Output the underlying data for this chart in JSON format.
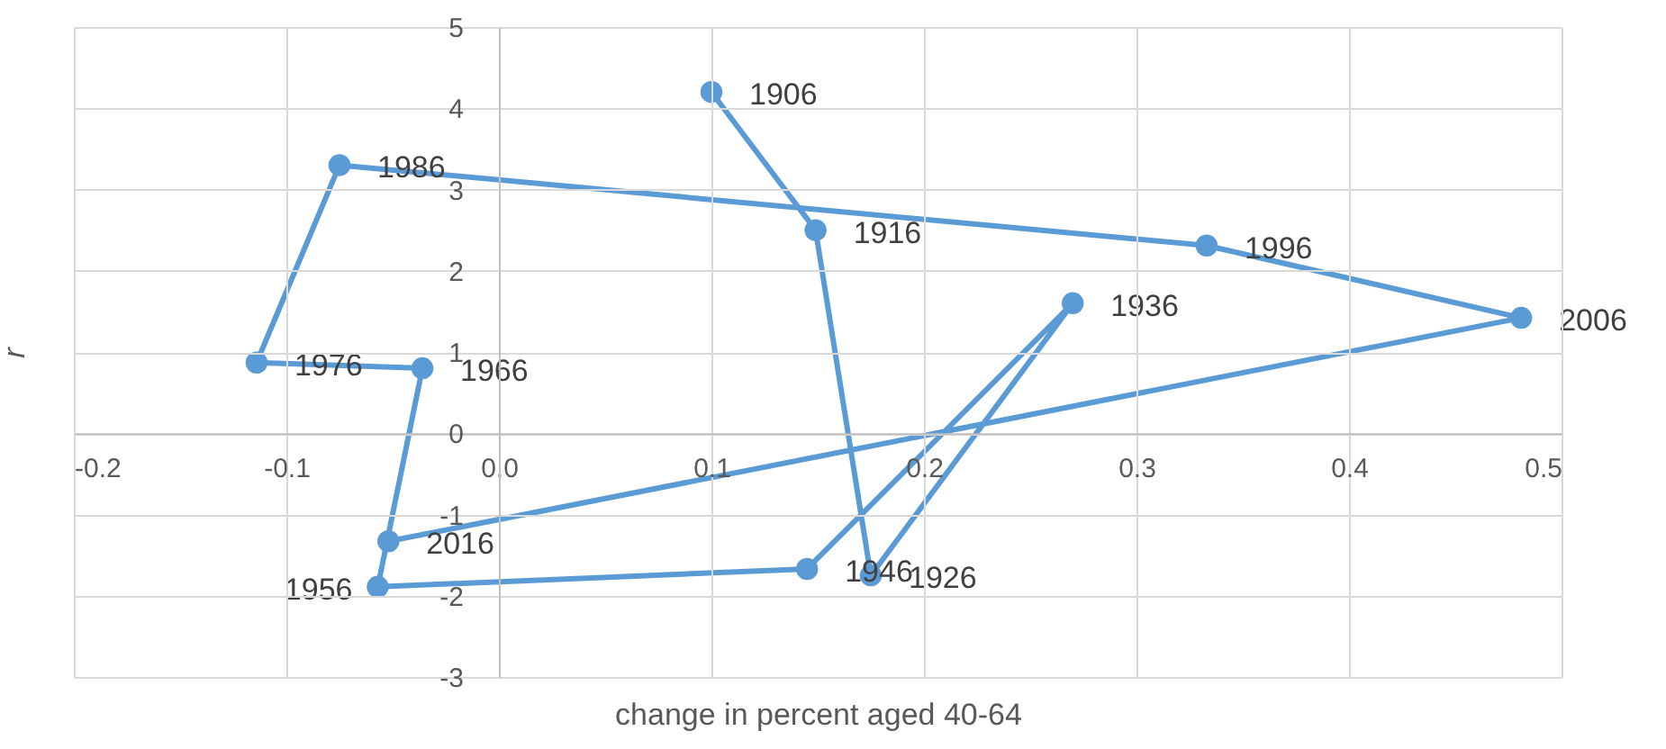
{
  "chart_data": {
    "type": "line",
    "xlabel": "change in percent aged 40-64",
    "ylabel": "r",
    "x": [
      0.1,
      0.149,
      0.175,
      0.27,
      0.145,
      -0.057,
      -0.036,
      -0.114,
      -0.075,
      0.333,
      0.481,
      -0.052
    ],
    "series": [
      {
        "color": "#5b9bd5",
        "values": [
          4.2,
          2.5,
          -1.75,
          1.6,
          -1.67,
          -1.89,
          0.8,
          0.87,
          3.3,
          2.31,
          1.42,
          -1.33
        ]
      }
    ],
    "annotations": [
      {
        "text": "1906",
        "x": 0.1,
        "y": 4.2
      },
      {
        "text": "1916",
        "x": 0.149,
        "y": 2.5
      },
      {
        "text": "1926",
        "x": 0.175,
        "y": -1.75
      },
      {
        "text": "1936",
        "x": 0.27,
        "y": 1.6
      },
      {
        "text": "1946",
        "x": 0.145,
        "y": -1.67
      },
      {
        "text": "1956",
        "x": -0.057,
        "y": -1.89
      },
      {
        "text": "1966",
        "x": -0.036,
        "y": 0.8
      },
      {
        "text": "1976",
        "x": -0.114,
        "y": 0.87
      },
      {
        "text": "1986",
        "x": -0.075,
        "y": 3.3
      },
      {
        "text": "1996",
        "x": 0.333,
        "y": 2.31
      },
      {
        "text": "2006",
        "x": 0.481,
        "y": 1.42
      },
      {
        "text": "2016",
        "x": -0.052,
        "y": -1.33
      }
    ],
    "xlim": [
      -0.2,
      0.5
    ],
    "xticks": [
      -0.2,
      -0.1,
      {
        "value": 0,
        "label": "0.0"
      },
      0.1,
      0.2,
      0.3,
      0.4,
      0.5
    ],
    "ylim": [
      -3,
      5
    ],
    "yticks": [
      -3,
      -2,
      -1,
      0,
      1,
      2,
      3,
      4,
      5
    ],
    "grid": true,
    "marker": "circle",
    "line_style": "solid"
  }
}
